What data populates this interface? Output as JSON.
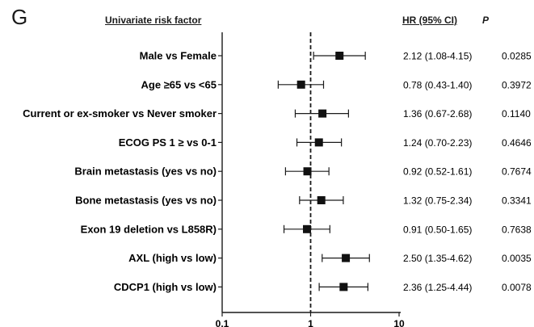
{
  "panel_letter": "G",
  "headers": {
    "factor": "Univariate risk factor",
    "hr": "HR (95% CI)",
    "p": "P"
  },
  "chart_data": {
    "type": "forest",
    "x_scale": "log",
    "xlim": [
      0.1,
      10
    ],
    "reference_line": 1,
    "x_ticks": [
      "0.1",
      "1",
      "10"
    ],
    "rows": [
      {
        "label": "Male vs Female",
        "hr": 2.12,
        "ci": [
          1.08,
          4.15
        ],
        "hr_text": "2.12 (1.08-4.15)",
        "p": "0.0285"
      },
      {
        "label": "Age ≥65 vs <65",
        "hr": 0.78,
        "ci": [
          0.43,
          1.4
        ],
        "hr_text": "0.78 (0.43-1.40)",
        "p": "0.3972"
      },
      {
        "label": "Current or ex-smoker vs Never smoker",
        "hr": 1.36,
        "ci": [
          0.67,
          2.68
        ],
        "hr_text": "1.36 (0.67-2.68)",
        "p": "0.1140"
      },
      {
        "label": "ECOG PS 1 ≥ vs 0-1",
        "hr": 1.24,
        "ci": [
          0.7,
          2.23
        ],
        "hr_text": "1.24 (0.70-2.23)",
        "p": "0.4646"
      },
      {
        "label": "Brain metastasis (yes vs no)",
        "hr": 0.92,
        "ci": [
          0.52,
          1.61
        ],
        "hr_text": "0.92 (0.52-1.61)",
        "p": "0.7674"
      },
      {
        "label": "Bone metastasis (yes vs no)",
        "hr": 1.32,
        "ci": [
          0.75,
          2.34
        ],
        "hr_text": "1.32 (0.75-2.34)",
        "p": "0.3341"
      },
      {
        "label": "Exon 19 deletion vs L858R)",
        "hr": 0.91,
        "ci": [
          0.5,
          1.65
        ],
        "hr_text": "0.91 (0.50-1.65)",
        "p": "0.7638"
      },
      {
        "label": "AXL (high vs low)",
        "hr": 2.5,
        "ci": [
          1.35,
          4.62
        ],
        "hr_text": "2.50 (1.35-4.62)",
        "p": "0.0035"
      },
      {
        "label": "CDCP1 (high vs low)",
        "hr": 2.36,
        "ci": [
          1.25,
          4.44
        ],
        "hr_text": "2.36 (1.25-4.44)",
        "p": "0.0078"
      }
    ]
  }
}
